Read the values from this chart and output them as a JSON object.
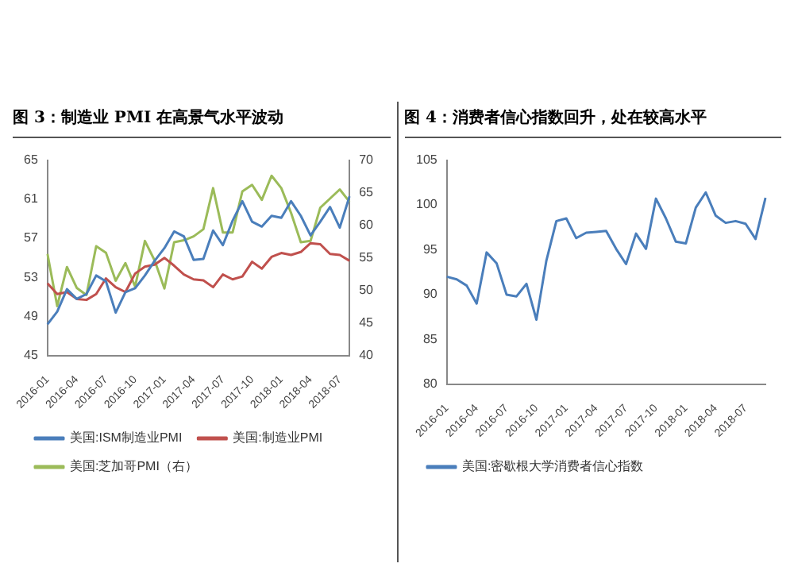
{
  "chart_data": [
    {
      "type": "line",
      "title": "图 3：制造业 PMI 在高景气水平波动",
      "categories": [
        "2016-01",
        null,
        null,
        "2016-04",
        null,
        null,
        "2016-07",
        null,
        null,
        "2016-10",
        null,
        null,
        "2017-01",
        null,
        null,
        "2017-04",
        null,
        null,
        "2017-07",
        null,
        null,
        "2017-10",
        null,
        null,
        "2018-01",
        null,
        null,
        "2018-04",
        null,
        null,
        "2018-07",
        null
      ],
      "series": [
        {
          "name": "美国:ISM制造业PMI",
          "color": "#4a7ebb",
          "values": [
            48.2,
            49.5,
            51.8,
            50.8,
            51.3,
            53.2,
            52.6,
            49.4,
            51.5,
            51.9,
            53.2,
            54.7,
            56.0,
            57.7,
            57.2,
            54.8,
            54.9,
            57.8,
            56.3,
            58.8,
            60.8,
            58.7,
            58.2,
            59.3,
            59.1,
            60.8,
            59.3,
            57.3,
            58.7,
            60.2,
            58.1,
            61.3
          ]
        },
        {
          "name": "美国:制造业PMI",
          "color": "#c0504d",
          "values": [
            52.4,
            51.3,
            51.5,
            50.8,
            50.7,
            51.3,
            52.9,
            52.0,
            51.5,
            53.4,
            54.1,
            54.3,
            55.0,
            54.2,
            53.3,
            52.8,
            52.7,
            52.0,
            53.3,
            52.8,
            53.1,
            54.6,
            53.9,
            55.1,
            55.5,
            55.3,
            55.6,
            56.5,
            56.4,
            55.4,
            55.3,
            54.7
          ]
        },
        {
          "name": "美国:芝加哥PMI（右）",
          "color": "#9bbb59",
          "axis": "y2",
          "values": [
            55.6,
            47.6,
            53.6,
            50.4,
            49.3,
            56.8,
            55.8,
            51.5,
            54.2,
            50.6,
            57.6,
            54.6,
            50.3,
            57.4,
            57.7,
            58.3,
            59.4,
            65.7,
            58.9,
            58.9,
            65.2,
            66.2,
            63.9,
            67.6,
            65.7,
            61.9,
            57.4,
            57.6,
            62.7,
            64.1,
            65.5,
            63.6
          ]
        }
      ],
      "ylim": [
        45,
        65
      ],
      "yticks": [
        45,
        49,
        53,
        57,
        61,
        65
      ],
      "y2lim": [
        40,
        70
      ],
      "y2ticks": [
        40,
        45,
        50,
        55,
        60,
        65,
        70
      ],
      "legend": "bottom"
    },
    {
      "type": "line",
      "title": "图 4：消费者信心指数回升，处在较高水平",
      "categories": [
        "2016-01",
        null,
        null,
        "2016-04",
        null,
        null,
        "2016-07",
        null,
        null,
        "2016-10",
        null,
        null,
        "2017-01",
        null,
        null,
        "2017-04",
        null,
        null,
        "2017-07",
        null,
        null,
        "2017-10",
        null,
        null,
        "2018-01",
        null,
        null,
        "2018-04",
        null,
        null,
        "2018-07",
        null,
        null
      ],
      "series": [
        {
          "name": "美国:密歇根大学消费者信心指数",
          "color": "#4a7ebb",
          "values": [
            92.0,
            91.7,
            91.0,
            89.0,
            94.7,
            93.5,
            90.0,
            89.8,
            91.2,
            87.2,
            93.8,
            98.2,
            98.5,
            96.3,
            96.9,
            97.0,
            97.1,
            95.1,
            93.4,
            96.8,
            95.1,
            100.7,
            98.5,
            95.9,
            95.7,
            99.7,
            101.4,
            98.8,
            98.0,
            98.2,
            97.9,
            96.2,
            100.8
          ]
        }
      ],
      "ylim": [
        80,
        105
      ],
      "yticks": [
        80,
        85,
        90,
        95,
        100,
        105
      ],
      "legend": "bottom"
    }
  ]
}
